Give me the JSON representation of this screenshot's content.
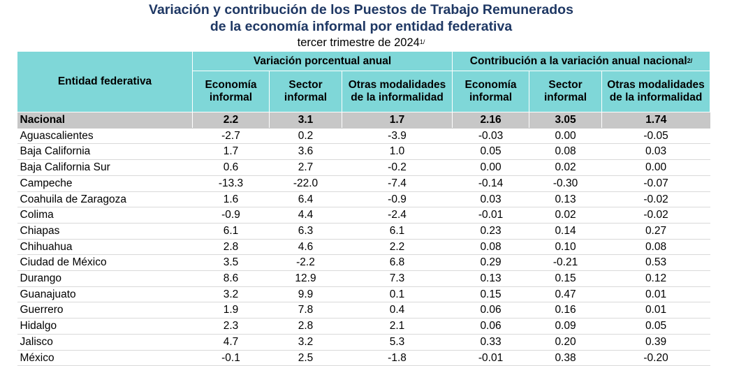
{
  "title": {
    "line1": "Variación y contribución de los Puestos de Trabajo Remunerados",
    "line2": "de la economía informal por entidad federativa",
    "line3": "tercer trimestre de 2024",
    "line3_note": "1/"
  },
  "table": {
    "entity_header": "Entidad federativa",
    "group1_header": "Variación porcentual anual",
    "group2_header": "Contribución a la variación anual nacional",
    "group2_note": "2/",
    "sub_headers": {
      "economia": "Economía informal",
      "sector": "Sector informal",
      "otras": "Otras modalidades de la informalidad"
    },
    "nacional": {
      "name": "Nacional",
      "values": [
        "2.2",
        "3.1",
        "1.7",
        "2.16",
        "3.05",
        "1.74"
      ]
    },
    "rows": [
      {
        "name": "Aguascalientes",
        "values": [
          "-2.7",
          "0.2",
          "-3.9",
          "-0.03",
          "0.00",
          "-0.05"
        ]
      },
      {
        "name": "Baja California",
        "values": [
          "1.7",
          "3.6",
          "1.0",
          "0.05",
          "0.08",
          "0.03"
        ]
      },
      {
        "name": "Baja California Sur",
        "values": [
          "0.6",
          "2.7",
          "-0.2",
          "0.00",
          "0.02",
          "0.00"
        ]
      },
      {
        "name": "Campeche",
        "values": [
          "-13.3",
          "-22.0",
          "-7.4",
          "-0.14",
          "-0.30",
          "-0.07"
        ]
      },
      {
        "name": "Coahuila de Zaragoza",
        "values": [
          "1.6",
          "6.4",
          "-0.9",
          "0.03",
          "0.13",
          "-0.02"
        ]
      },
      {
        "name": "Colima",
        "values": [
          "-0.9",
          "4.4",
          "-2.4",
          "-0.01",
          "0.02",
          "-0.02"
        ]
      },
      {
        "name": "Chiapas",
        "values": [
          "6.1",
          "6.3",
          "6.1",
          "0.23",
          "0.14",
          "0.27"
        ]
      },
      {
        "name": "Chihuahua",
        "values": [
          "2.8",
          "4.6",
          "2.2",
          "0.08",
          "0.10",
          "0.08"
        ]
      },
      {
        "name": "Ciudad de México",
        "values": [
          "3.5",
          "-2.2",
          "6.8",
          "0.29",
          "-0.21",
          "0.53"
        ]
      },
      {
        "name": "Durango",
        "values": [
          "8.6",
          "12.9",
          "7.3",
          "0.13",
          "0.15",
          "0.12"
        ]
      },
      {
        "name": "Guanajuato",
        "values": [
          "3.2",
          "9.9",
          "0.1",
          "0.15",
          "0.47",
          "0.01"
        ]
      },
      {
        "name": "Guerrero",
        "values": [
          "1.9",
          "7.8",
          "0.4",
          "0.06",
          "0.16",
          "0.01"
        ]
      },
      {
        "name": "Hidalgo",
        "values": [
          "2.3",
          "2.8",
          "2.1",
          "0.06",
          "0.09",
          "0.05"
        ]
      },
      {
        "name": "Jalisco",
        "values": [
          "4.7",
          "3.2",
          "5.3",
          "0.33",
          "0.20",
          "0.39"
        ]
      },
      {
        "name": "México",
        "values": [
          "-0.1",
          "2.5",
          "-1.8",
          "-0.01",
          "0.38",
          "-0.20"
        ]
      }
    ]
  }
}
